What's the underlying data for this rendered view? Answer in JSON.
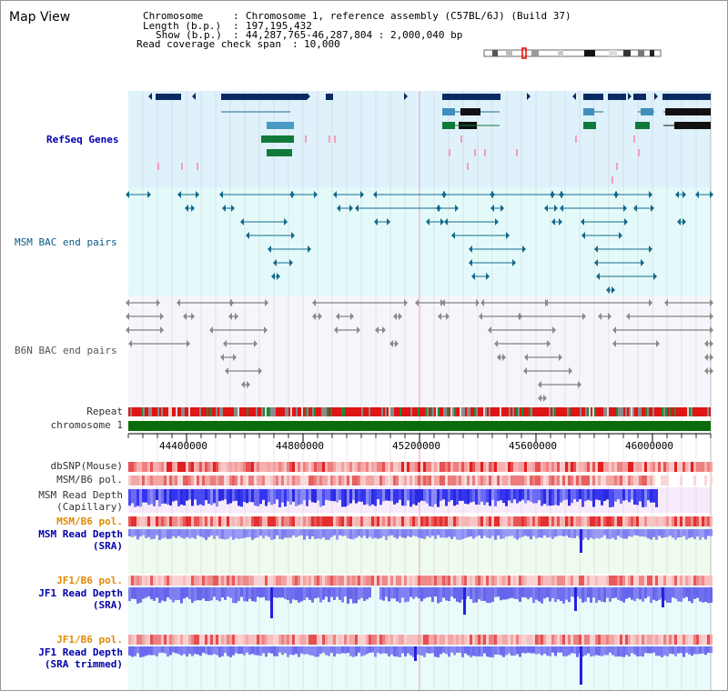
{
  "page": {
    "title": "Map View"
  },
  "header": {
    "chromosome_key": "Chromosome",
    "chromosome_value": "Chromosome 1, reference assembly (C57BL/6J) (Build 37)",
    "length_key": "Length (b.p.)",
    "length_value": "197,195,432",
    "show_key": "Show (b.p.)",
    "show_value": "44,287,765-46,287,804 : 2,000,040 bp",
    "coverage_key": "Read coverage check span",
    "coverage_value": "10,000"
  },
  "tracks": {
    "refseq": "RefSeq Genes",
    "msm_bac": "MSM BAC end pairs",
    "b6n_bac": "B6N BAC end pairs",
    "repeat": "Repeat",
    "chromosome": "chromosome 1",
    "dbsnp": "dbSNP(Mouse)",
    "msm_b6_pol_1": "MSM/B6 pol.",
    "msm_read_depth_cap_1": "MSM Read Depth",
    "msm_read_depth_cap_2": "(Capillary)",
    "msm_b6_pol_2": "MSM/B6 pol.",
    "msm_read_depth_sra_1": "MSM Read Depth",
    "msm_read_depth_sra_2": "(SRA)",
    "jf1_b6_pol_1": "JF1/B6 pol.",
    "jf1_read_depth_sra_1": "JF1 Read Depth",
    "jf1_read_depth_sra_2": "(SRA)",
    "jf1_b6_pol_2": "JF1/B6 pol.",
    "jf1_read_depth_trim_1": "JF1 Read Depth",
    "jf1_read_depth_trim_2": "(SRA trimmed)"
  },
  "axis": {
    "ticks": [
      "44400000",
      "44800000",
      "45200000",
      "45600000",
      "46000000"
    ]
  },
  "colors": {
    "refseq_bg": "#dff1fb",
    "msm_bg": "#e4fafa",
    "b6n_bg": "#f4f4fb",
    "chromosome": "#0a6b0a",
    "gene_navy": "#0a2a63",
    "bac_teal": "#13698c"
  }
}
